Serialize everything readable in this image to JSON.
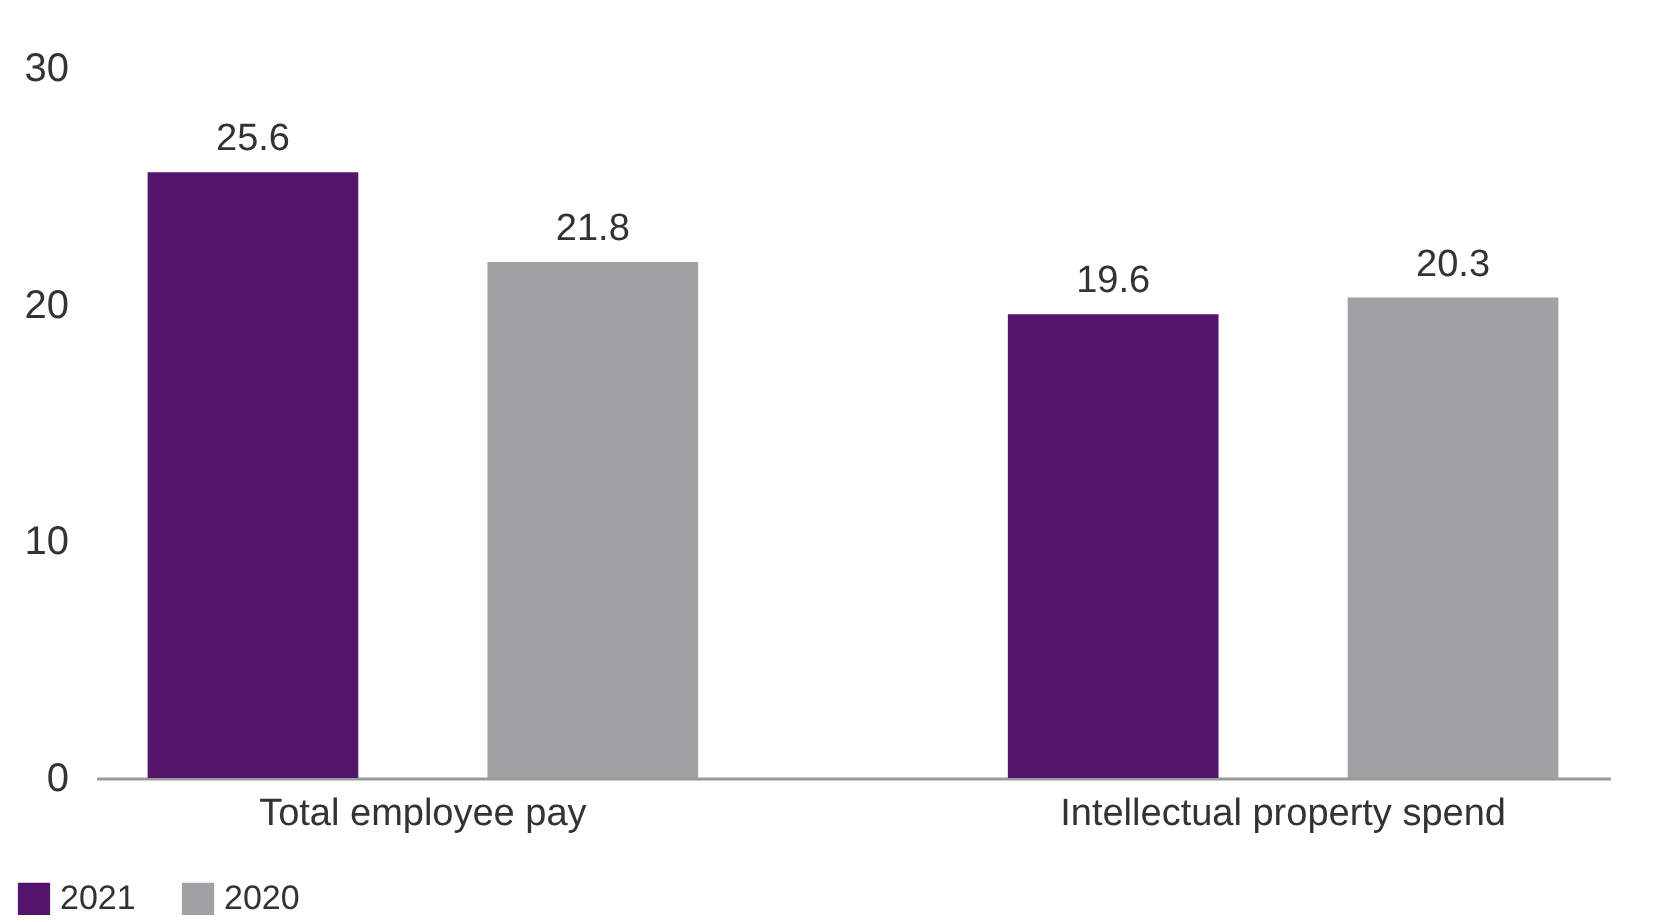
{
  "chart_data": {
    "type": "bar",
    "categories": [
      "Total employee pay",
      "Intellectual property spend"
    ],
    "series": [
      {
        "name": "2021",
        "color": "#54146b",
        "values": [
          25.6,
          19.6
        ]
      },
      {
        "name": "2020",
        "color": "#a0a0a5",
        "values": [
          21.8,
          20.3
        ]
      }
    ],
    "ylim": [
      0,
      30
    ],
    "yticks": [
      0,
      10,
      20,
      30
    ],
    "grid": false,
    "legend": "bottom left",
    "data_labels": true
  }
}
